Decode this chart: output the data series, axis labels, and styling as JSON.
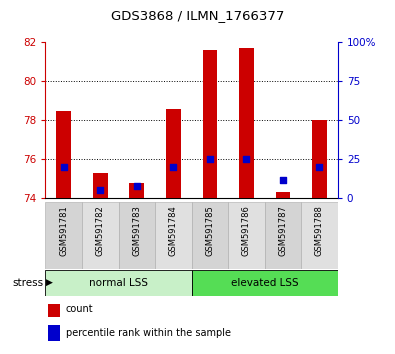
{
  "title": "GDS3868 / ILMN_1766377",
  "samples": [
    "GSM591781",
    "GSM591782",
    "GSM591783",
    "GSM591784",
    "GSM591785",
    "GSM591786",
    "GSM591787",
    "GSM591788"
  ],
  "red_values": [
    78.5,
    75.3,
    74.8,
    78.6,
    81.6,
    81.7,
    74.3,
    78.0
  ],
  "blue_values": [
    20,
    5,
    8,
    20,
    25,
    25,
    12,
    20
  ],
  "ylim_left": [
    74,
    82
  ],
  "ylim_right": [
    0,
    100
  ],
  "yticks_left": [
    74,
    76,
    78,
    80,
    82
  ],
  "yticks_right": [
    0,
    25,
    50,
    75,
    100
  ],
  "grid_lines": [
    76,
    78,
    80
  ],
  "groups": [
    {
      "label": "normal LSS",
      "start": 0,
      "end": 4,
      "color": "#c8f0c8"
    },
    {
      "label": "elevated LSS",
      "start": 4,
      "end": 8,
      "color": "#55dd55"
    }
  ],
  "stress_label": "stress",
  "legend_items": [
    {
      "color": "#cc0000",
      "label": "count"
    },
    {
      "color": "#0000cc",
      "label": "percentile rank within the sample"
    }
  ],
  "bar_color": "#cc0000",
  "dot_color": "#0000cc",
  "bg_color": "#ffffff",
  "left_tick_color": "#cc0000",
  "right_tick_color": "#0000cc",
  "bar_width": 0.4,
  "dot_size": 15
}
